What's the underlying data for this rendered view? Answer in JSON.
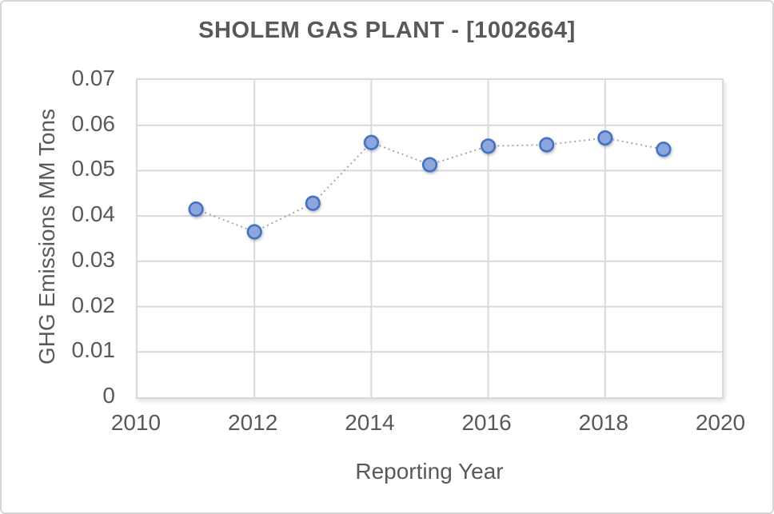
{
  "window": {
    "background": "#ffffff",
    "border_color": "#d7d7d7"
  },
  "chart_data": {
    "type": "scatter",
    "title": "SHOLEM GAS PLANT - [1002664]",
    "xlabel": "Reporting Year",
    "ylabel": "GHG Emissions MM Tons",
    "x": [
      2011,
      2012,
      2013,
      2014,
      2015,
      2016,
      2017,
      2018,
      2019
    ],
    "y": [
      0.0415,
      0.0365,
      0.0428,
      0.0562,
      0.0513,
      0.0554,
      0.0557,
      0.0572,
      0.0547
    ],
    "xlim": [
      2010,
      2020
    ],
    "ylim": [
      0,
      0.07
    ],
    "xticks": {
      "values": [
        2010,
        2012,
        2014,
        2016,
        2018,
        2020
      ],
      "labels": [
        "2010",
        "2012",
        "2014",
        "2016",
        "2018",
        "2020"
      ]
    },
    "yticks": {
      "values": [
        0,
        0.01,
        0.02,
        0.03,
        0.04,
        0.05,
        0.06,
        0.07
      ],
      "labels": [
        "0",
        "0.01",
        "0.02",
        "0.03",
        "0.04",
        "0.05",
        "0.06",
        "0.07"
      ]
    },
    "grid": true,
    "legend": false,
    "line_style": "dotted",
    "marker": {
      "shape": "circle",
      "fill": "#8da6db",
      "stroke": "#4472c4"
    },
    "colors": {
      "connector": "#a6a6a6",
      "grid": "#d9d9d9",
      "text": "#595959",
      "title": "#595959"
    }
  }
}
